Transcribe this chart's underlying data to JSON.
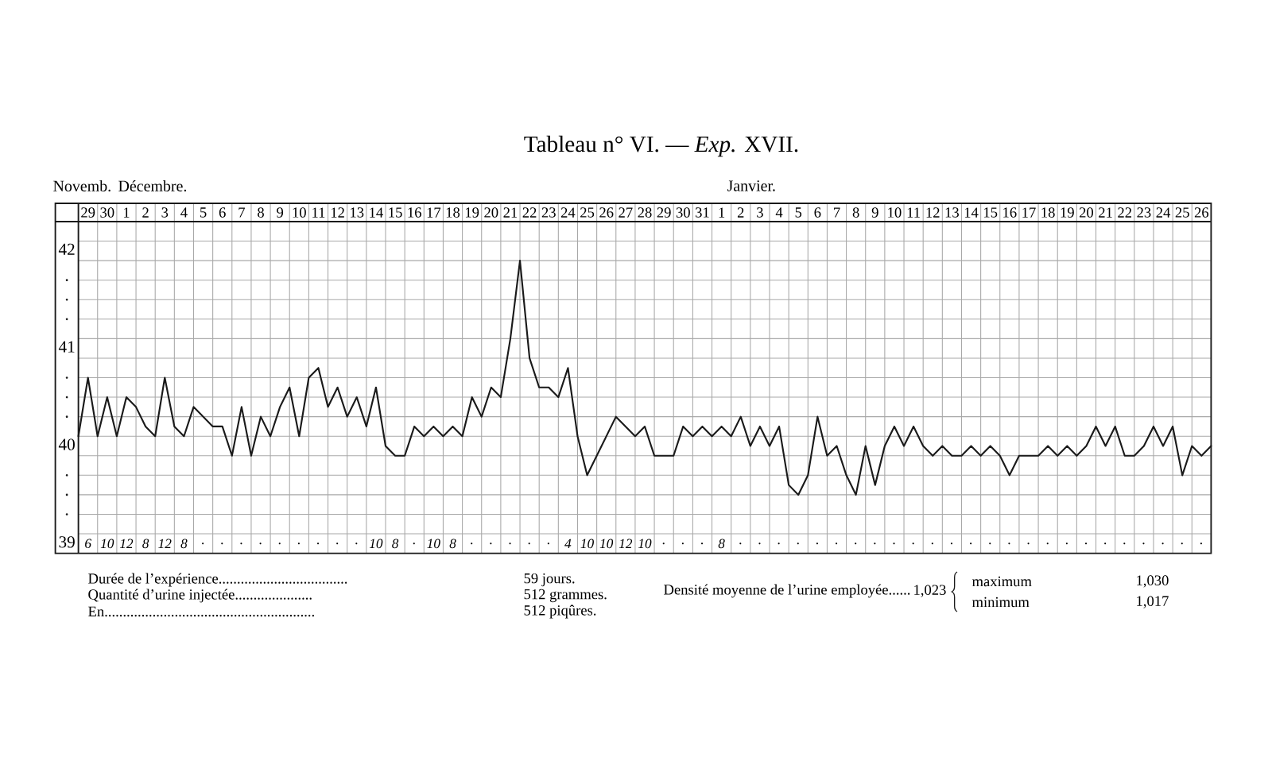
{
  "chart_data": {
    "type": "line",
    "title": "Tableau n° VI. — *Exp.* XVII.",
    "categories": [
      null,
      "29",
      null,
      "30",
      null,
      "1",
      null,
      "2",
      null,
      "3",
      null,
      "4",
      null,
      "5",
      null,
      "6",
      null,
      "7",
      null,
      "8",
      null,
      "9",
      null,
      "10",
      null,
      "11",
      null,
      "12",
      null,
      "13",
      null,
      "14",
      null,
      "15",
      null,
      "16",
      null,
      "17",
      null,
      "18",
      null,
      "19",
      null,
      "20",
      null,
      "21",
      null,
      "22",
      null,
      "23",
      null,
      "24",
      null,
      "25",
      null,
      "26",
      null,
      "27",
      null,
      "28",
      null,
      "29",
      null,
      "30",
      null,
      "31",
      null,
      "1",
      null,
      "2",
      null,
      "3",
      null,
      "4",
      null,
      "5",
      null,
      "6",
      null,
      "7",
      null,
      "8",
      null,
      "9",
      null,
      "10",
      null,
      "11",
      null,
      "12",
      null,
      "13",
      null,
      "14",
      null,
      "15",
      null,
      "16",
      null,
      "17",
      null,
      "18",
      null,
      "19",
      null,
      "20",
      null,
      "21",
      null,
      "22",
      null,
      "23",
      null,
      "24",
      null,
      "25",
      null,
      "26",
      null
    ],
    "values": [
      40.0,
      40.6,
      40.0,
      40.4,
      40.0,
      40.4,
      40.3,
      40.1,
      40.0,
      40.6,
      40.1,
      40.0,
      40.3,
      40.2,
      40.1,
      40.1,
      39.8,
      40.3,
      39.8,
      40.2,
      40.0,
      40.3,
      40.5,
      40.0,
      40.6,
      40.7,
      40.3,
      40.5,
      40.2,
      40.4,
      40.1,
      40.5,
      39.9,
      39.8,
      39.8,
      40.1,
      40.0,
      40.1,
      40.0,
      40.1,
      40.0,
      40.4,
      40.2,
      40.5,
      40.4,
      41.0,
      41.8,
      40.8,
      40.5,
      40.5,
      40.4,
      40.7,
      40.0,
      39.6,
      39.8,
      40.0,
      40.2,
      40.1,
      40.0,
      40.1,
      39.8,
      39.8,
      39.8,
      40.1,
      40.0,
      40.1,
      40.0,
      40.1,
      40.0,
      40.2,
      39.9,
      40.1,
      39.9,
      40.1,
      39.5,
      39.4,
      39.6,
      40.2,
      39.8,
      39.9,
      39.6,
      39.4,
      39.9,
      39.5,
      39.9,
      40.1,
      39.9,
      40.1,
      39.9,
      39.8,
      39.9,
      39.8,
      39.8,
      39.9,
      39.8,
      39.9,
      39.8,
      39.6,
      39.8,
      39.8,
      39.8,
      39.9,
      39.8,
      39.9,
      39.8,
      39.9,
      40.1,
      39.9,
      40.1,
      39.8,
      39.8,
      39.9,
      40.1,
      39.9,
      40.1,
      39.6,
      39.9,
      39.8,
      39.9
    ],
    "color": "#1a1a1a",
    "ylim": [
      38.8,
      42.2
    ],
    "yticks": [
      39,
      {
        "value": 39.2,
        "label": null
      },
      {
        "value": 39.4,
        "label": null
      },
      {
        "value": 39.6,
        "label": null
      },
      {
        "value": 39.8,
        "label": null
      },
      40,
      {
        "value": 40.2,
        "label": null
      },
      {
        "value": 40.4,
        "label": null
      },
      {
        "value": 40.6,
        "label": null
      },
      {
        "value": 40.8,
        "label": null
      },
      41,
      {
        "value": 41.2,
        "label": null
      },
      {
        "value": 41.4,
        "label": null
      },
      {
        "value": 41.6,
        "label": null
      },
      {
        "value": 41.8,
        "label": null
      },
      42,
      {
        "value": 42.2,
        "label": null
      }
    ],
    "grid": true,
    "annotations": [
      "6",
      "10",
      "12",
      "8",
      "12",
      "8",
      ".",
      ".",
      ".",
      ".",
      ".",
      ".",
      ".",
      ".",
      ".",
      "10",
      "8",
      ".",
      "10",
      "8",
      ".",
      ".",
      ".",
      ".",
      ".",
      "4",
      "10",
      "10",
      "12",
      "10",
      ".",
      ".",
      ".",
      "8",
      ".",
      ".",
      ".",
      ".",
      ".",
      ".",
      ".",
      ".",
      ".",
      ".",
      ".",
      ".",
      ".",
      ".",
      ".",
      ".",
      ".",
      ".",
      ".",
      ".",
      ".",
      ".",
      ".",
      ".",
      ".",
      "Novemb.",
      "Décembre.",
      "Janvier.",
      "Durée de l’expérience...................................",
      "59 jours.",
      "Quantité d’urine injectée.....................",
      "512 grammes.",
      "En.........................................................",
      "512 piqûres.",
      "Densité moyenne de l’urine employée......",
      "1,023",
      "maximum",
      "1,030",
      "minimum",
      "1,017"
    ]
  }
}
